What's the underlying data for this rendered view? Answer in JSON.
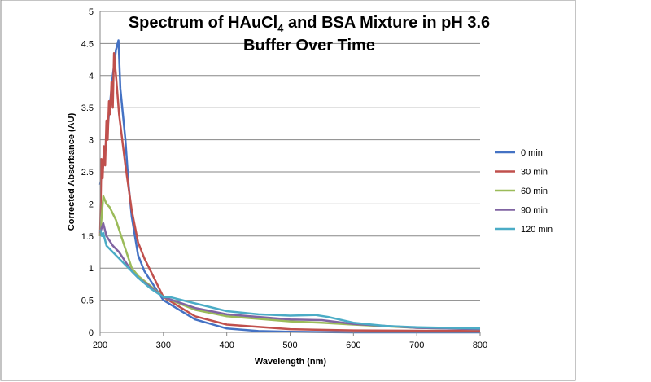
{
  "chart_data": {
    "type": "line",
    "title": "Spectrum of HAuCl",
    "title_subscript": "4",
    "title_rest": " and BSA Mixture in pH 3.6",
    "title_line2": "Buffer Over Time",
    "xlabel": "Wavelength (nm)",
    "ylabel": "Corrected Absorbance  (AU)",
    "xlim": [
      200,
      800
    ],
    "ylim": [
      0,
      5
    ],
    "xticks": [
      "200",
      "300",
      "400",
      "500",
      "600",
      "700",
      "800"
    ],
    "yticks": [
      "0",
      "0.5",
      "1",
      "1.5",
      "2",
      "2.5",
      "3",
      "3.5",
      "4",
      "4.5",
      "5"
    ],
    "grid": "horizontal",
    "legend_position": "right",
    "series": [
      {
        "name": "0 min",
        "color": "#4472C4",
        "x": [
          200,
          205,
          210,
          215,
          220,
          225,
          229,
          232,
          236,
          240,
          245,
          250,
          260,
          270,
          280,
          300,
          350,
          400,
          450,
          500,
          600,
          800
        ],
        "y": [
          2.3,
          2.6,
          3.0,
          3.5,
          4.0,
          4.4,
          4.55,
          3.8,
          3.4,
          3.0,
          2.3,
          1.8,
          1.2,
          0.95,
          0.8,
          0.5,
          0.2,
          0.06,
          0.02,
          0.01,
          0.0,
          0.0
        ]
      },
      {
        "name": "30 min",
        "color": "#C0504D",
        "x": [
          200,
          202,
          204,
          206,
          208,
          210,
          212,
          214,
          216,
          218,
          220,
          222,
          226,
          230,
          235,
          240,
          250,
          260,
          270,
          280,
          290,
          300,
          350,
          400,
          500,
          600,
          800
        ],
        "y": [
          1.5,
          2.7,
          2.4,
          2.9,
          2.6,
          3.3,
          3.0,
          3.6,
          3.4,
          3.9,
          3.5,
          4.35,
          3.9,
          3.4,
          3.0,
          2.6,
          1.9,
          1.4,
          1.15,
          0.95,
          0.75,
          0.55,
          0.25,
          0.12,
          0.05,
          0.03,
          0.02
        ]
      },
      {
        "name": "60 min",
        "color": "#9BBB59",
        "x": [
          200,
          205,
          210,
          215,
          225,
          240,
          250,
          260,
          280,
          300,
          350,
          400,
          500,
          550,
          600,
          700,
          800
        ],
        "y": [
          1.5,
          2.12,
          2.0,
          1.95,
          1.75,
          1.3,
          1.0,
          0.88,
          0.72,
          0.55,
          0.35,
          0.25,
          0.17,
          0.15,
          0.12,
          0.07,
          0.05
        ]
      },
      {
        "name": "90 min",
        "color": "#8064A2",
        "x": [
          200,
          205,
          210,
          220,
          230,
          240,
          250,
          260,
          280,
          300,
          350,
          400,
          500,
          550,
          600,
          700,
          800
        ],
        "y": [
          1.55,
          1.7,
          1.5,
          1.35,
          1.25,
          1.1,
          0.95,
          0.85,
          0.7,
          0.55,
          0.38,
          0.28,
          0.2,
          0.19,
          0.13,
          0.07,
          0.05
        ]
      },
      {
        "name": "120 min",
        "color": "#4BACC6",
        "x": [
          200,
          203,
          205,
          210,
          220,
          240,
          260,
          280,
          300,
          310,
          350,
          400,
          450,
          500,
          540,
          560,
          600,
          650,
          700,
          800
        ],
        "y": [
          1.6,
          1.5,
          1.55,
          1.35,
          1.25,
          1.05,
          0.85,
          0.68,
          0.55,
          0.55,
          0.45,
          0.33,
          0.28,
          0.26,
          0.27,
          0.24,
          0.15,
          0.1,
          0.08,
          0.06
        ]
      }
    ]
  }
}
